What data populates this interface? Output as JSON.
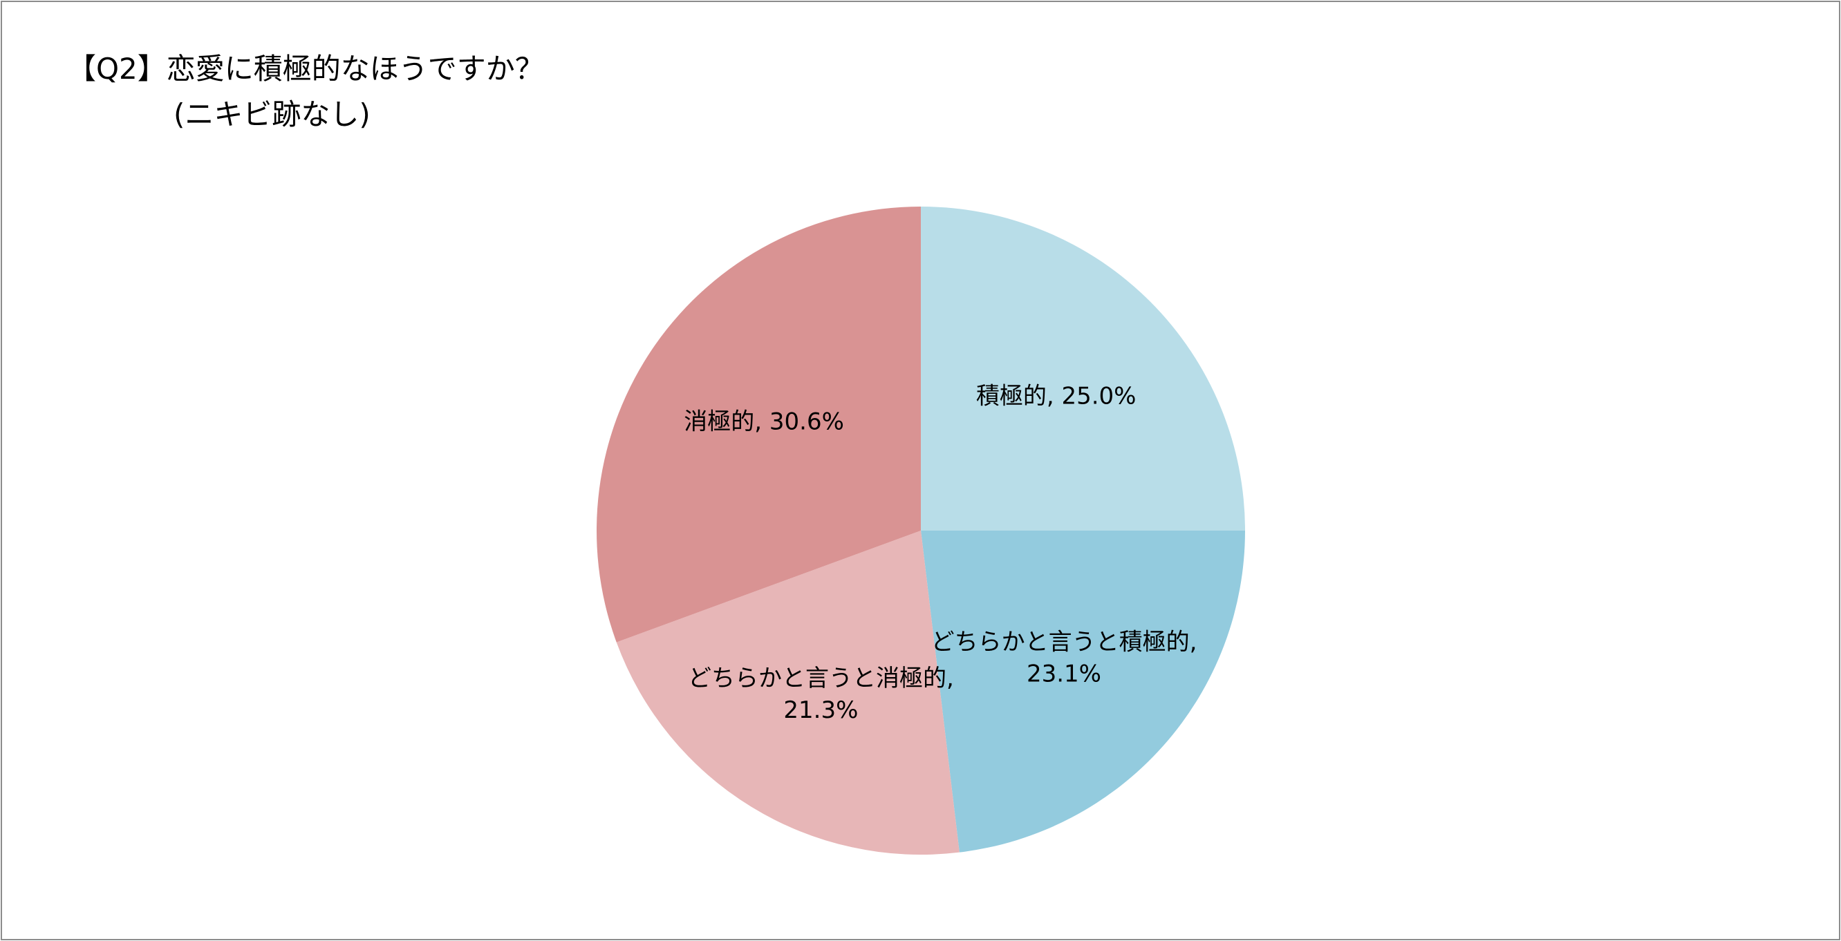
{
  "chart_data": {
    "type": "pie",
    "title": "【Q2】恋愛に積極的なほうですか？",
    "subtitle": "(ニキビ跡なし)",
    "slices": [
      {
        "label": "積極的",
        "value": 25.0,
        "display": "積極的, 25.0%",
        "lines": [
          "積極的, 25.0%"
        ],
        "color": "#b8dde8"
      },
      {
        "label": "どちらかと言うと積極的",
        "value": 23.1,
        "display": "どちらかと言うと積極的, 23.1%",
        "lines": [
          "どちらかと言うと積極的,",
          "23.1%"
        ],
        "color": "#93cbde"
      },
      {
        "label": "どちらかと言うと消極的",
        "value": 21.3,
        "display": "どちらかと言うと消極的, 21.3%",
        "lines": [
          "どちらかと言うと消極的,",
          "21.3%"
        ],
        "color": "#e7b6b7"
      },
      {
        "label": "消極的",
        "value": 30.6,
        "display": "消極的, 30.6%",
        "lines": [
          "消極的, 30.6%"
        ],
        "color": "#d99393"
      }
    ],
    "unit": "%",
    "legend": "none",
    "start_angle": "12 o'clock",
    "direction": "clockwise"
  }
}
